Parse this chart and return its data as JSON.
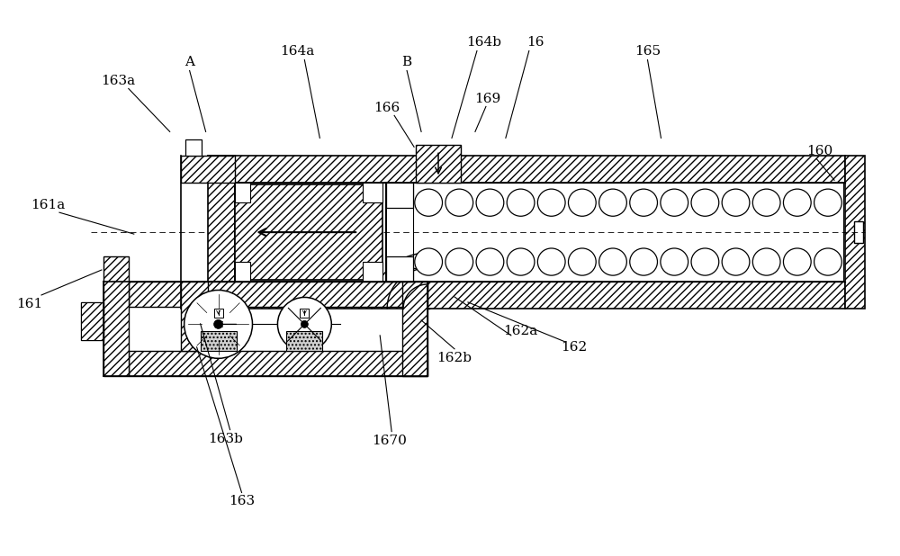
{
  "bg": "#ffffff",
  "lc": "#000000",
  "fig_w": 10.0,
  "fig_h": 6.18,
  "dpi": 100,
  "labels": [
    [
      "A",
      2.1,
      5.5
    ],
    [
      "B",
      4.52,
      5.5
    ],
    [
      "163a",
      1.3,
      5.28
    ],
    [
      "164a",
      3.3,
      5.62
    ],
    [
      "164b",
      5.38,
      5.72
    ],
    [
      "16",
      5.95,
      5.72
    ],
    [
      "166",
      4.3,
      4.98
    ],
    [
      "169",
      5.42,
      5.08
    ],
    [
      "165",
      7.2,
      5.62
    ],
    [
      "160",
      9.12,
      4.5
    ],
    [
      "161a",
      0.52,
      3.9
    ],
    [
      "161",
      0.32,
      2.8
    ],
    [
      "162a",
      5.78,
      2.5
    ],
    [
      "162b",
      5.05,
      2.2
    ],
    [
      "162",
      6.38,
      2.32
    ],
    [
      "163b",
      2.5,
      1.3
    ],
    [
      "163",
      2.68,
      0.6
    ],
    [
      "1670",
      4.32,
      1.28
    ]
  ],
  "leaders": [
    [
      "A",
      2.1,
      5.4,
      2.28,
      4.72
    ],
    [
      "B",
      4.52,
      5.4,
      4.68,
      4.72
    ],
    [
      "163a",
      1.42,
      5.2,
      1.88,
      4.72
    ],
    [
      "164a",
      3.38,
      5.52,
      3.55,
      4.65
    ],
    [
      "164b",
      5.3,
      5.62,
      5.02,
      4.65
    ],
    [
      "16",
      5.88,
      5.62,
      5.62,
      4.65
    ],
    [
      "166",
      4.38,
      4.9,
      4.6,
      4.55
    ],
    [
      "169",
      5.4,
      5.0,
      5.28,
      4.72
    ],
    [
      "165",
      7.2,
      5.52,
      7.35,
      4.65
    ],
    [
      "160",
      9.08,
      4.42,
      9.28,
      4.18
    ],
    [
      "161a",
      0.65,
      3.82,
      1.48,
      3.58
    ],
    [
      "161",
      0.45,
      2.9,
      1.12,
      3.18
    ],
    [
      "162a",
      5.68,
      2.45,
      5.05,
      2.88
    ],
    [
      "162b",
      5.05,
      2.3,
      4.68,
      2.62
    ],
    [
      "162",
      6.28,
      2.38,
      5.2,
      2.82
    ],
    [
      "163b",
      2.55,
      1.4,
      2.22,
      2.58
    ],
    [
      "163",
      2.68,
      0.7,
      2.18,
      2.32
    ],
    [
      "1670",
      4.35,
      1.38,
      4.22,
      2.45
    ]
  ]
}
